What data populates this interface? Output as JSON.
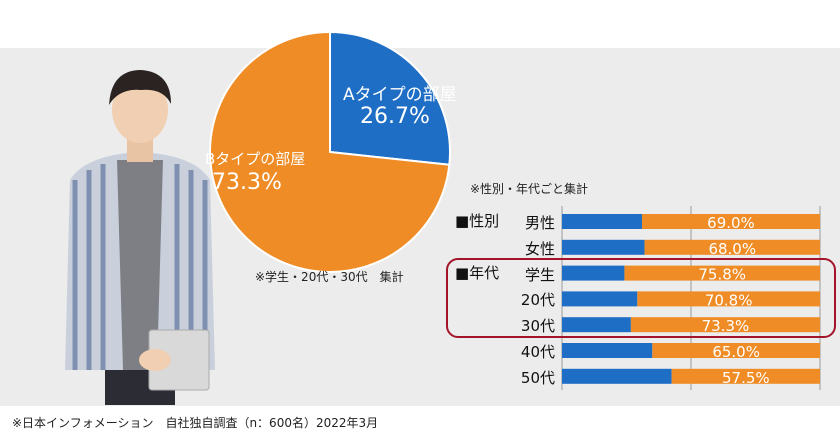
{
  "chart_data": [
    {
      "type": "pie",
      "slices": [
        {
          "label": "Aタイプの部屋",
          "value": 26.7,
          "value_text": "26.7%",
          "color": "#1f6ec5"
        },
        {
          "label": "Bタイプの部屋",
          "value": 73.3,
          "value_text": "73.3%",
          "color": "#ef8c25"
        }
      ],
      "note": "※学生・20代・30代　集計"
    },
    {
      "type": "bar",
      "orientation": "horizontal",
      "stacked": true,
      "note": "※性別・年代ごと集計",
      "group_labels": {
        "gender": "■性別",
        "age": "■年代"
      },
      "categories": [
        "男性",
        "女性",
        "学生",
        "20代",
        "30代",
        "40代",
        "50代"
      ],
      "series": [
        {
          "values": [
            31.0,
            32.0,
            24.2,
            29.2,
            26.7,
            35.0,
            42.5
          ],
          "color": "#1f6ec5"
        },
        {
          "values": [
            69.0,
            68.0,
            75.8,
            70.8,
            73.3,
            65.0,
            57.5
          ],
          "color": "#ef8c25"
        }
      ],
      "labels": [
        "69.0%",
        "68.0%",
        "75.8%",
        "70.8%",
        "73.3%",
        "65.0%",
        "57.5%"
      ],
      "xlim": [
        0,
        100
      ],
      "highlight_categories": [
        "学生",
        "20代",
        "30代"
      ],
      "highlight_color": "#a3142a"
    }
  ],
  "footer": "※日本インフォメーション　自社独自調査（n：600名）2022年3月"
}
